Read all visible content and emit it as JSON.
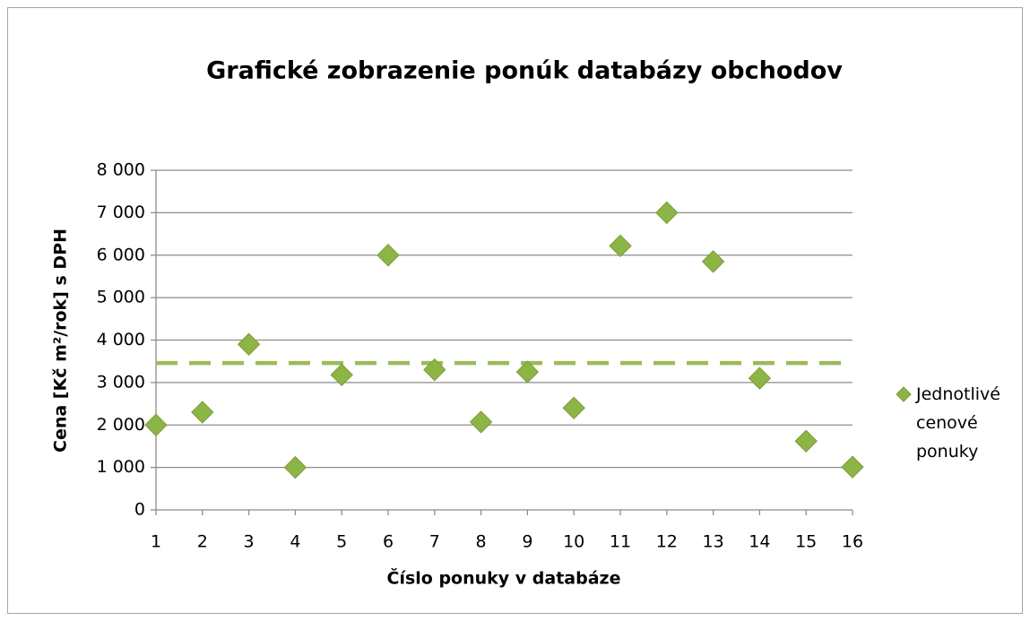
{
  "chart_data": {
    "type": "scatter",
    "title": "Grafické zobrazenie ponúk databázy obchodov",
    "x_label": "Číslo ponuky v databáze",
    "y_label": "Cena [Kč m²/rok] s DPH",
    "series": [
      {
        "name": "Jednotlivé cenové ponuky",
        "color": "#8db546",
        "x": [
          1,
          2,
          3,
          4,
          5,
          6,
          7,
          8,
          9,
          10,
          11,
          12,
          13,
          14,
          15,
          16
        ],
        "values": [
          2000,
          2300,
          3900,
          1000,
          3180,
          6000,
          3300,
          2070,
          3250,
          2400,
          6220,
          7000,
          5850,
          3100,
          1620,
          1010
        ]
      }
    ],
    "reference_line": {
      "value": 3460,
      "color": "#9bbb59"
    },
    "xlim": [
      1,
      16
    ],
    "xticks": [
      1,
      2,
      3,
      4,
      5,
      6,
      7,
      8,
      9,
      10,
      11,
      12,
      13,
      14,
      15,
      16
    ],
    "ylim": [
      0,
      8000
    ],
    "yticks": [
      0,
      {
        "value": 1000,
        "label": "1 000"
      },
      {
        "value": 2000,
        "label": "2 000"
      },
      {
        "value": 3000,
        "label": "3 000"
      },
      {
        "value": 4000,
        "label": "4 000"
      },
      {
        "value": 5000,
        "label": "5 000"
      },
      {
        "value": 6000,
        "label": "6 000"
      },
      {
        "value": 7000,
        "label": "7 000"
      },
      {
        "value": 8000,
        "label": "8 000"
      }
    ],
    "grid": true,
    "legend": "right"
  }
}
